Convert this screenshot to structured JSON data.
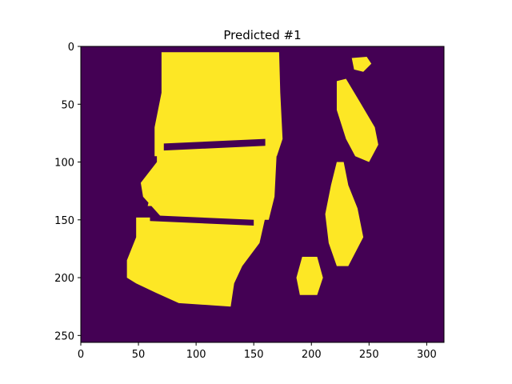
{
  "chart_data": {
    "type": "heatmap",
    "title": "Predicted #1",
    "xlabel": "",
    "ylabel": "",
    "xlim": [
      0,
      315
    ],
    "ylim": [
      256,
      0
    ],
    "x_ticks": [
      0,
      50,
      100,
      150,
      200,
      250,
      300
    ],
    "y_ticks": [
      0,
      50,
      100,
      150,
      200,
      250
    ],
    "grid": false,
    "legend": "none",
    "colors": {
      "background": "#440154",
      "foreground": "#fde725"
    },
    "foreground_regions": [
      {
        "name": "main-tissue-upper",
        "polygon": [
          [
            70,
            5
          ],
          [
            172,
            5
          ],
          [
            173,
            40
          ],
          [
            175,
            80
          ],
          [
            170,
            95
          ],
          [
            64,
            95
          ],
          [
            64,
            70
          ],
          [
            70,
            40
          ]
        ]
      },
      {
        "name": "main-tissue-middle",
        "polygon": [
          [
            66,
            90
          ],
          [
            170,
            90
          ],
          [
            168,
            130
          ],
          [
            163,
            150
          ],
          [
            72,
            150
          ],
          [
            54,
            130
          ],
          [
            52,
            118
          ],
          [
            66,
            100
          ]
        ]
      },
      {
        "name": "main-tissue-lower",
        "polygon": [
          [
            48,
            148
          ],
          [
            160,
            148
          ],
          [
            155,
            170
          ],
          [
            140,
            190
          ],
          [
            133,
            205
          ],
          [
            130,
            225
          ],
          [
            85,
            222
          ],
          [
            65,
            213
          ],
          [
            48,
            205
          ],
          [
            40,
            200
          ],
          [
            40,
            185
          ],
          [
            48,
            165
          ]
        ]
      },
      {
        "name": "left-spur",
        "polygon": [
          [
            60,
            130
          ],
          [
            75,
            128
          ],
          [
            75,
            138
          ],
          [
            58,
            138
          ]
        ]
      },
      {
        "name": "right-upper-lobe",
        "polygon": [
          [
            222,
            30
          ],
          [
            230,
            28
          ],
          [
            242,
            48
          ],
          [
            255,
            70
          ],
          [
            258,
            85
          ],
          [
            250,
            100
          ],
          [
            238,
            95
          ],
          [
            230,
            80
          ],
          [
            222,
            55
          ]
        ]
      },
      {
        "name": "right-middle-lobe",
        "polygon": [
          [
            222,
            100
          ],
          [
            228,
            100
          ],
          [
            232,
            120
          ],
          [
            240,
            140
          ],
          [
            245,
            165
          ],
          [
            232,
            190
          ],
          [
            222,
            190
          ],
          [
            215,
            170
          ],
          [
            212,
            145
          ],
          [
            217,
            120
          ]
        ]
      },
      {
        "name": "small-bottom-blob",
        "polygon": [
          [
            192,
            182
          ],
          [
            205,
            182
          ],
          [
            210,
            200
          ],
          [
            205,
            215
          ],
          [
            190,
            215
          ],
          [
            187,
            200
          ]
        ]
      },
      {
        "name": "top-right-blob",
        "polygon": [
          [
            235,
            10
          ],
          [
            248,
            9
          ],
          [
            252,
            15
          ],
          [
            245,
            22
          ],
          [
            237,
            20
          ]
        ]
      }
    ],
    "background_gaps": [
      {
        "name": "upper-dark-band",
        "polygon": [
          [
            72,
            84
          ],
          [
            160,
            80
          ],
          [
            160,
            86
          ],
          [
            72,
            90
          ]
        ]
      },
      {
        "name": "lower-dark-band",
        "polygon": [
          [
            60,
            146
          ],
          [
            150,
            150
          ],
          [
            150,
            155
          ],
          [
            60,
            151
          ]
        ]
      }
    ]
  }
}
